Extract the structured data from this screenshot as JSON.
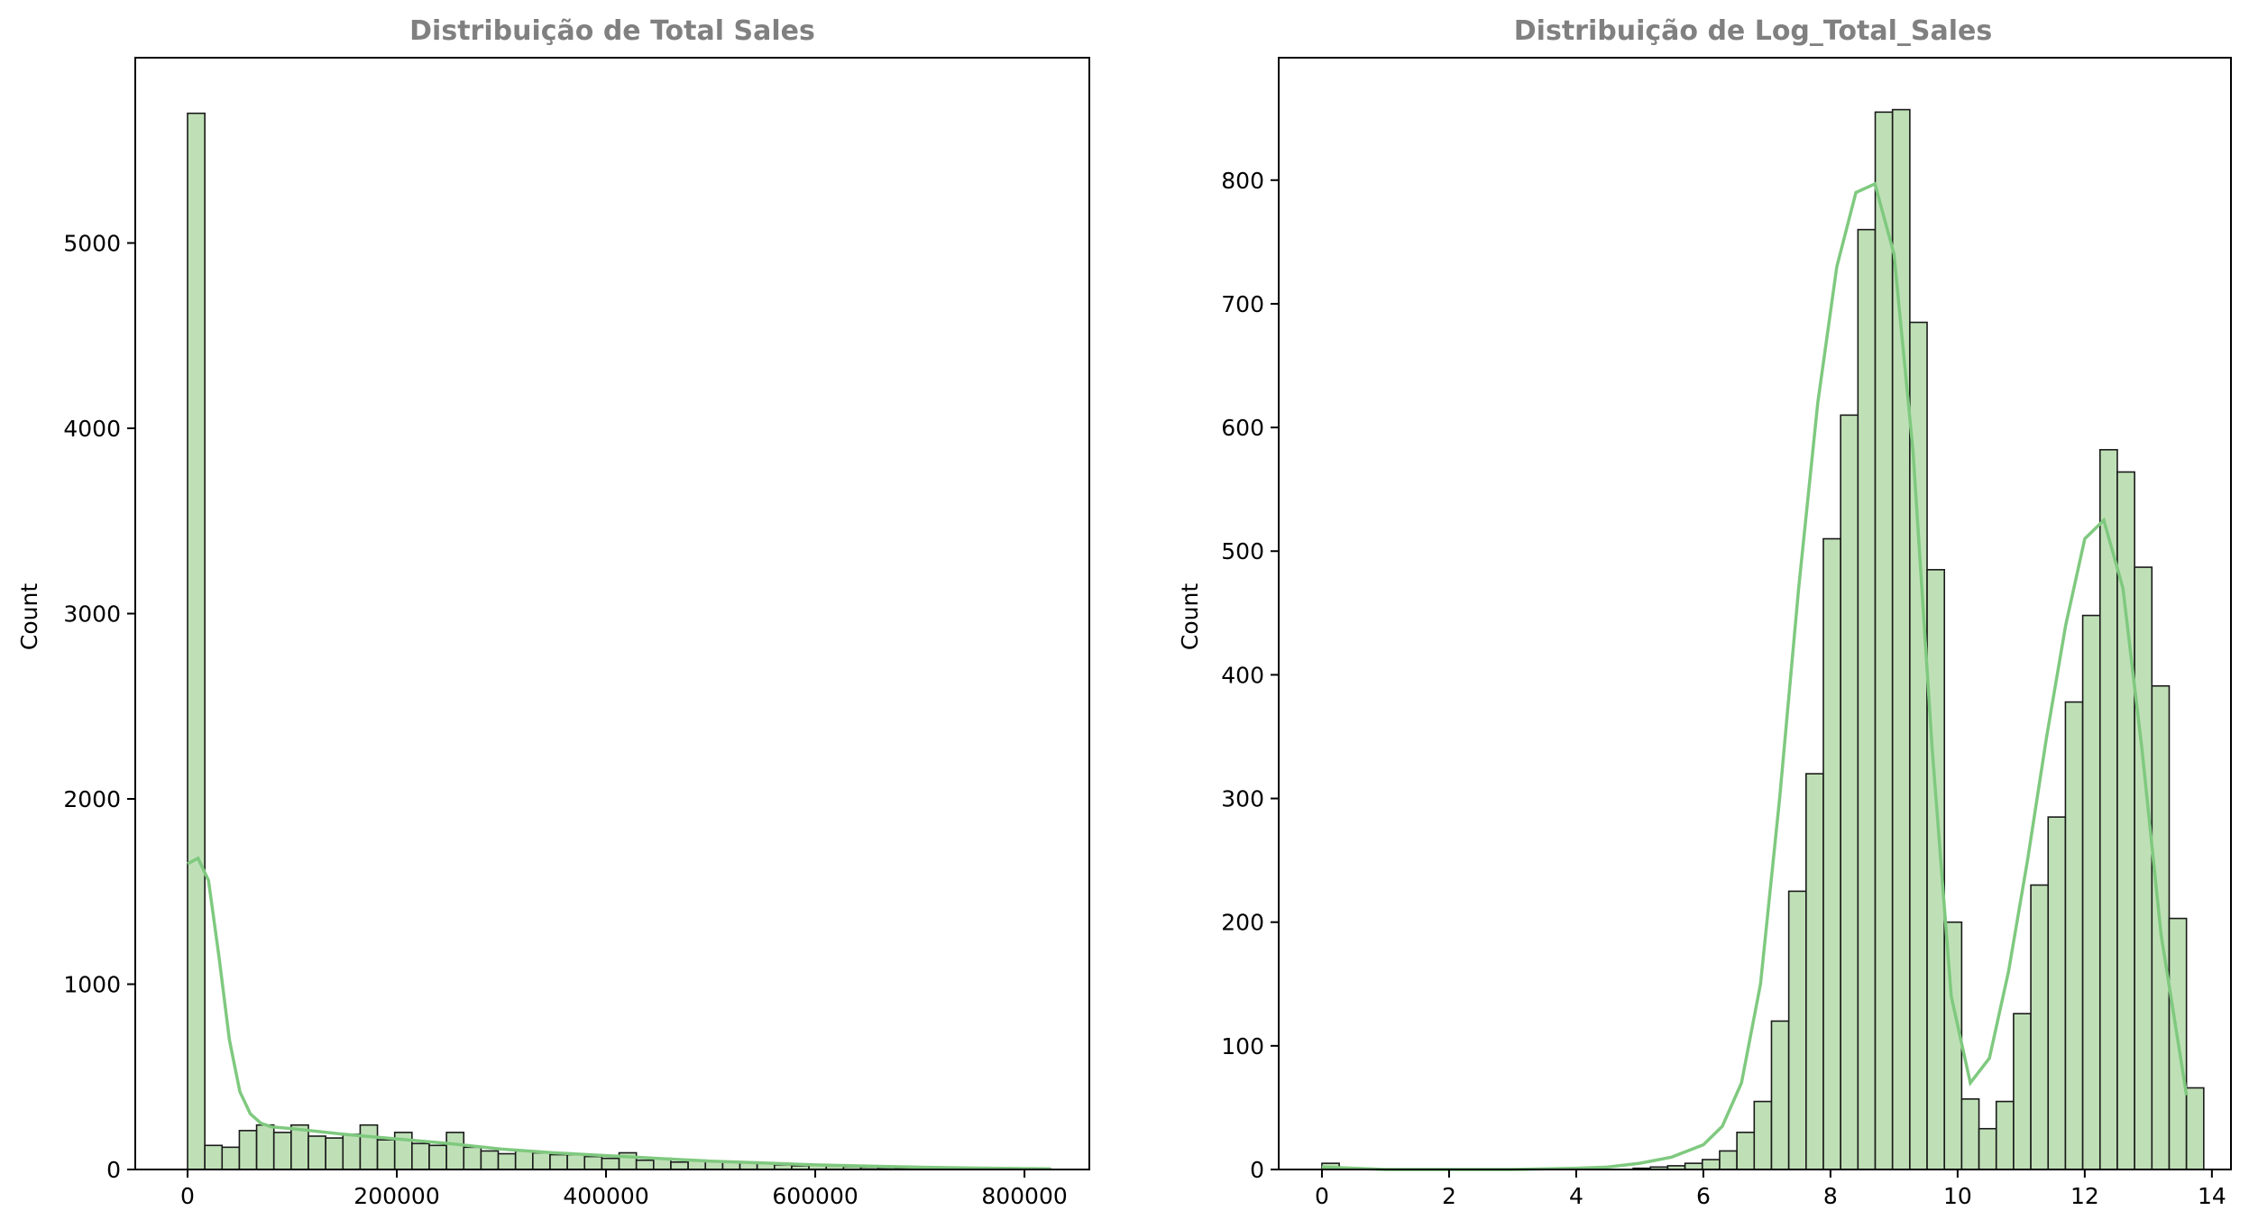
{
  "colors": {
    "bar_fill": "#bfe0b6",
    "bar_edge": "#1a1a1a",
    "kde_line": "#7fc97f",
    "title_text": "#808080"
  },
  "chart_data": [
    {
      "type": "bar",
      "title": "Distribuição de Total Sales",
      "xlabel": "",
      "ylabel": "Count",
      "xlim": [
        -50000,
        862000
      ],
      "ylim": [
        0,
        6000
      ],
      "xticks": [
        0,
        200000,
        400000,
        600000,
        800000
      ],
      "xtick_labels": [
        "0",
        "200000",
        "400000",
        "600000",
        "800000"
      ],
      "yticks": [
        0,
        1000,
        2000,
        3000,
        4000,
        5000
      ],
      "ytick_labels": [
        "0",
        "1000",
        "2000",
        "3000",
        "4000",
        "5000"
      ],
      "bin_start": 0,
      "bin_width": 16500,
      "counts": [
        5700,
        130,
        120,
        210,
        240,
        200,
        240,
        180,
        170,
        190,
        240,
        160,
        200,
        140,
        130,
        200,
        120,
        100,
        85,
        100,
        90,
        80,
        80,
        70,
        60,
        90,
        50,
        60,
        40,
        50,
        45,
        40,
        40,
        35,
        25,
        20,
        22,
        18,
        15,
        12,
        10,
        8,
        8,
        7,
        6,
        5,
        5,
        4,
        4,
        3
      ],
      "kde": {
        "x": [
          0,
          10000,
          20000,
          30000,
          40000,
          50000,
          60000,
          70000,
          80000,
          100000,
          150000,
          200000,
          250000,
          300000,
          350000,
          400000,
          450000,
          500000,
          550000,
          600000,
          650000,
          700000,
          750000,
          800000,
          825000
        ],
        "y": [
          1650,
          1680,
          1560,
          1150,
          700,
          420,
          300,
          250,
          230,
          220,
          190,
          165,
          140,
          110,
          90,
          75,
          60,
          45,
          35,
          25,
          18,
          12,
          8,
          5,
          4
        ]
      }
    },
    {
      "type": "bar",
      "title": "Distribuição de Log_Total_Sales",
      "xlabel": "",
      "ylabel": "Count",
      "xlim": [
        -0.68,
        14.3
      ],
      "ylim": [
        0,
        899
      ],
      "xticks": [
        0,
        2,
        4,
        6,
        8,
        10,
        12,
        14
      ],
      "xtick_labels": [
        "0",
        "2",
        "4",
        "6",
        "8",
        "10",
        "12",
        "14"
      ],
      "yticks": [
        0,
        100,
        200,
        300,
        400,
        500,
        600,
        700,
        800
      ],
      "ytick_labels": [
        "0",
        "100",
        "200",
        "300",
        "400",
        "500",
        "600",
        "700",
        "800"
      ],
      "bin_start": 0,
      "bin_width": 0.272,
      "counts": [
        5,
        0,
        0,
        0,
        0,
        0,
        0,
        0,
        0,
        0,
        0,
        0,
        0,
        0,
        0,
        0,
        0,
        0,
        1,
        2,
        3,
        5,
        8,
        15,
        30,
        55,
        120,
        225,
        320,
        510,
        610,
        760,
        855,
        857,
        685,
        485,
        200,
        57,
        33,
        55,
        126,
        230,
        285,
        378,
        448,
        582,
        564,
        487,
        391,
        203,
        66
      ],
      "kde": {
        "x": [
          0,
          0.5,
          1,
          2,
          3,
          4,
          4.5,
          5,
          5.5,
          6,
          6.3,
          6.6,
          6.9,
          7.2,
          7.5,
          7.8,
          8.1,
          8.4,
          8.7,
          9.0,
          9.3,
          9.6,
          9.9,
          10.2,
          10.5,
          10.8,
          11.1,
          11.4,
          11.7,
          12.0,
          12.3,
          12.6,
          12.9,
          13.2,
          13.6
        ],
        "y": [
          2,
          1,
          0,
          0,
          0,
          1,
          2,
          5,
          10,
          20,
          35,
          70,
          150,
          300,
          470,
          620,
          730,
          790,
          797,
          740,
          580,
          340,
          140,
          70,
          90,
          160,
          250,
          350,
          440,
          510,
          525,
          470,
          340,
          190,
          60
        ]
      }
    }
  ]
}
